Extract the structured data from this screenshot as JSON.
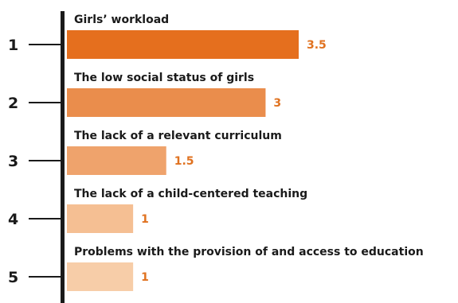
{
  "chart_data": {
    "type": "bar",
    "orientation": "horizontal",
    "ranks": [
      "1",
      "2",
      "3",
      "4",
      "5"
    ],
    "categories": [
      "Girls’ workload",
      "The low social status of girls",
      "The lack of a relevant curriculum",
      "The lack of a child-centered teaching",
      "Problems with the provision of and access to education"
    ],
    "values": [
      3.5,
      3,
      1.5,
      1,
      1
    ],
    "value_labels": [
      "3.5",
      "3",
      "1.5",
      "1",
      "1"
    ],
    "bar_colors": [
      "#e56f1e",
      "#ea8d4c",
      "#efa36c",
      "#f5bf93",
      "#f7cda8"
    ],
    "value_label_color": "#e07220",
    "axis_color": "#1a1a1a",
    "xlim": [
      0,
      3.5
    ],
    "grid": false,
    "legend": false
  }
}
